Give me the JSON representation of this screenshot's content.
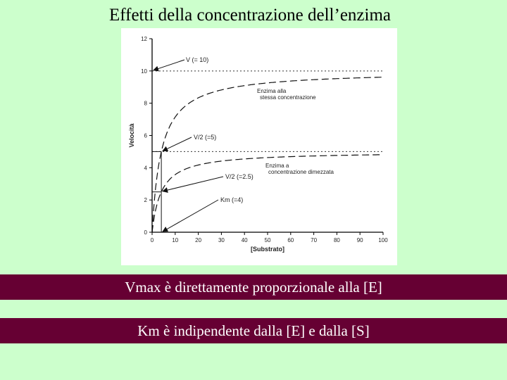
{
  "slide": {
    "title": "Effetti della concentrazione dell’enzima",
    "statement_vmax": "Vmax è direttamente proporzionale alla [E]",
    "statement_km": "Km è indipendente dalla [E] e dalla [S]",
    "band_color": "#660033",
    "background_color": "#ccffcc"
  },
  "chart_data": {
    "type": "line",
    "title": "",
    "xlabel": "[Substrato]",
    "ylabel": "Velocità",
    "xlim": [
      0,
      100
    ],
    "ylim": [
      0,
      12
    ],
    "xticks": [
      "0",
      "10",
      "20",
      "30",
      "40",
      "50",
      "60",
      "70",
      "80",
      "90",
      "100"
    ],
    "yticks": [
      "0",
      "2",
      "4",
      "6",
      "8",
      "10",
      "12"
    ],
    "km": 4,
    "series": [
      {
        "name": "Enzima alla stessa concentrazione",
        "vmax": 10,
        "km": 4,
        "x": [
          0,
          2,
          4,
          6,
          8,
          10,
          15,
          20,
          30,
          40,
          50,
          60,
          70,
          80,
          90,
          100
        ],
        "y": [
          0,
          3.33,
          5.0,
          6.0,
          6.67,
          7.14,
          7.89,
          8.33,
          8.82,
          9.09,
          9.26,
          9.38,
          9.46,
          9.52,
          9.57,
          9.62
        ]
      },
      {
        "name": "Enzima a concentrazione dimezzata",
        "vmax": 5,
        "km": 4,
        "x": [
          0,
          2,
          4,
          6,
          8,
          10,
          15,
          20,
          30,
          40,
          50,
          60,
          70,
          80,
          90,
          100
        ],
        "y": [
          0,
          1.67,
          2.5,
          3.0,
          3.33,
          3.57,
          3.95,
          4.17,
          4.41,
          4.55,
          4.63,
          4.69,
          4.73,
          4.76,
          4.79,
          4.81
        ]
      }
    ],
    "reference_lines": [
      {
        "axis": "y",
        "value": 10,
        "style": "dotted"
      },
      {
        "axis": "y",
        "value": 5,
        "style": "dotted"
      }
    ],
    "annotations": [
      {
        "text": "V (= 10)",
        "points_to": [
          0,
          10
        ]
      },
      {
        "text": "V/2 (=5)",
        "points_to": [
          4,
          5
        ]
      },
      {
        "text": "V/2 (=2.5)",
        "points_to": [
          4,
          2.5
        ]
      },
      {
        "text": "Km (=4)",
        "points_to": [
          4,
          0
        ]
      },
      {
        "text": "Enzima alla stessa concentrazione",
        "points_to": []
      },
      {
        "text": "Enzima a concentrazione dimezzata",
        "points_to": []
      }
    ],
    "grid": false,
    "legend": "none"
  }
}
